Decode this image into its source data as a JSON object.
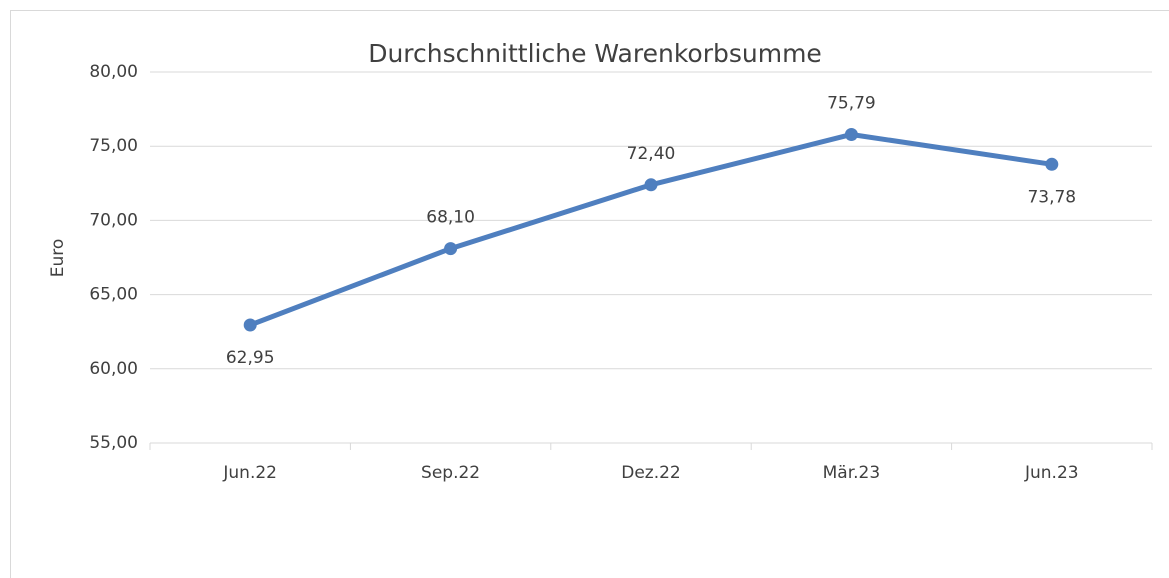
{
  "chart_data": {
    "type": "line",
    "title": "Durchschnittliche Warenkorbsumme",
    "y_label": "Euro",
    "categories": [
      "Jun.22",
      "Sep.22",
      "Dez.22",
      "Mär.23",
      "Jun.23"
    ],
    "series": [
      {
        "name": "Durchschnittliche Warenkorbsumme",
        "color": "#4f7fbf",
        "values": [
          62.95,
          68.1,
          72.4,
          75.79,
          73.78
        ],
        "value_labels": [
          "62,95",
          "68,10",
          "72,40",
          "75,79",
          "73,78"
        ]
      }
    ],
    "ylim": [
      55,
      80
    ],
    "yticks": [
      {
        "value": 55,
        "label": "55,00"
      },
      {
        "value": 60,
        "label": "60,00"
      },
      {
        "value": 65,
        "label": "65,00"
      },
      {
        "value": 70,
        "label": "70,00"
      },
      {
        "value": 75,
        "label": "75,00"
      },
      {
        "value": 80,
        "label": "80,00"
      }
    ],
    "grid": true
  }
}
